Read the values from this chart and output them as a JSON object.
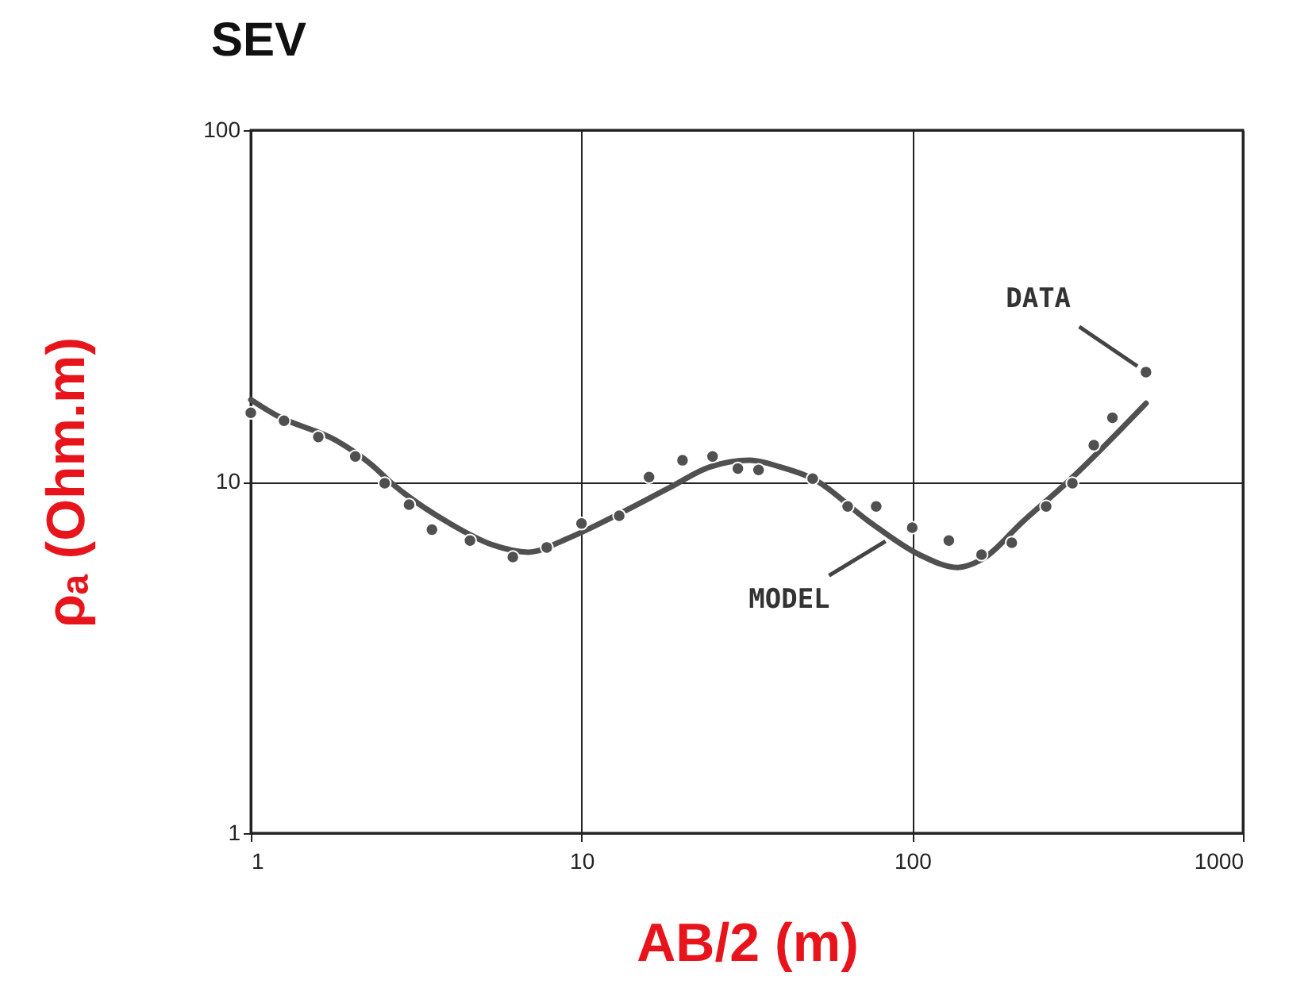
{
  "chart_data": {
    "type": "scatter",
    "title": "SEV",
    "xlabel": "AB/2 (m)",
    "ylabel": "ρₐ (Ohm.m)",
    "log": "xy",
    "grid": true,
    "xlim": [
      1,
      1000
    ],
    "xticks": [
      1,
      10,
      100,
      1000
    ],
    "ylim": [
      1,
      100
    ],
    "yticks": [
      1,
      10,
      100
    ],
    "series": [
      {
        "marker": "circle",
        "color": "#505050",
        "x": [
          1.0,
          1.26,
          1.6,
          2.07,
          2.54,
          3.01,
          3.53,
          4.6,
          6.2,
          7.85,
          10,
          13.0,
          16.0,
          20.2,
          24.9,
          29.7,
          34.3,
          50,
          63.8,
          77.8,
          100,
          129,
          162,
          200,
          254,
          305,
          354,
          403,
          509
        ],
        "values": [
          15.7,
          14.9,
          13.4,
          11.8,
          9.9,
          8.6,
          7.3,
          6.8,
          6.1,
          6.5,
          7.6,
          8.0,
          10.3,
          11.5,
          11.8,
          10.9,
          10.8,
          10.2,
          8.5,
          8.5,
          7.4,
          6.8,
          6.2,
          6.7,
          8.5,
          9.9,
          12.7,
          15.2,
          20.5
        ]
      },
      {
        "type": "line",
        "color": "#505050",
        "x": [
          1,
          1.2,
          1.81,
          2.31,
          2.7,
          4.0,
          5.4,
          6.9,
          9.1,
          13,
          18.4,
          24.4,
          32.3,
          40,
          50,
          74,
          105,
          137,
          162,
          216,
          299,
          509
        ],
        "values": [
          17.1,
          15.4,
          13.1,
          11.2,
          9.8,
          7.6,
          6.6,
          6.3,
          6.9,
          8.1,
          9.6,
          11.0,
          11.5,
          11.0,
          10.2,
          7.7,
          6.2,
          5.7,
          6.0,
          7.7,
          10.1,
          16.7
        ]
      }
    ],
    "annotations": [
      {
        "text": "DATA",
        "x": 509,
        "y": 20.5
      },
      {
        "text": "MODEL",
        "x": 88,
        "y": 7.0
      }
    ]
  }
}
